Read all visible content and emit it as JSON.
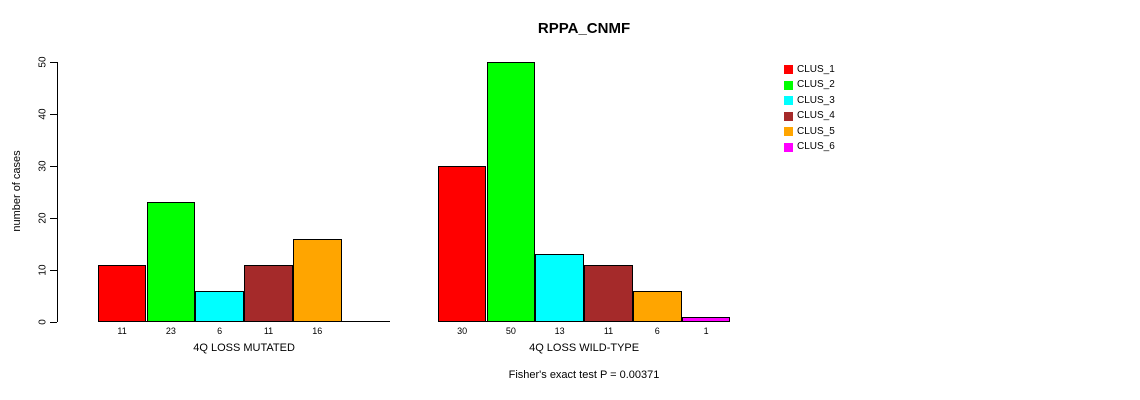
{
  "title": "RPPA_CNMF",
  "footnote": "Fisher's exact test P = 0.00371",
  "chart_data": {
    "type": "bar",
    "title": "RPPA_CNMF",
    "xlabel": "",
    "ylabel": "number of cases",
    "ylim": [
      0,
      50
    ],
    "yticks": [
      0,
      10,
      20,
      30,
      40,
      50
    ],
    "grid": false,
    "legend_position": "right",
    "background_color": "#ffffff",
    "clusters": [
      {
        "name": "CLUS_1",
        "color": "#ff0000"
      },
      {
        "name": "CLUS_2",
        "color": "#00ff00"
      },
      {
        "name": "CLUS_3",
        "color": "#00ffff"
      },
      {
        "name": "CLUS_4",
        "color": "#a52a2a"
      },
      {
        "name": "CLUS_5",
        "color": "#ffa500"
      },
      {
        "name": "CLUS_6",
        "color": "#ff00ff"
      }
    ],
    "groups": [
      {
        "xlabel": "4Q LOSS MUTATED",
        "slots": 6,
        "bars": [
          {
            "cluster": "CLUS_1",
            "value": 11
          },
          {
            "cluster": "CLUS_2",
            "value": 23
          },
          {
            "cluster": "CLUS_3",
            "value": 6
          },
          {
            "cluster": "CLUS_4",
            "value": 11
          },
          {
            "cluster": "CLUS_5",
            "value": 16
          }
        ]
      },
      {
        "xlabel": "4Q LOSS WILD-TYPE",
        "slots": 6,
        "bars": [
          {
            "cluster": "CLUS_1",
            "value": 30
          },
          {
            "cluster": "CLUS_2",
            "value": 50
          },
          {
            "cluster": "CLUS_3",
            "value": 13
          },
          {
            "cluster": "CLUS_4",
            "value": 11
          },
          {
            "cluster": "CLUS_5",
            "value": 6
          },
          {
            "cluster": "CLUS_6",
            "value": 1
          }
        ]
      }
    ],
    "annotation": "Fisher's exact test P = 0.00371"
  }
}
